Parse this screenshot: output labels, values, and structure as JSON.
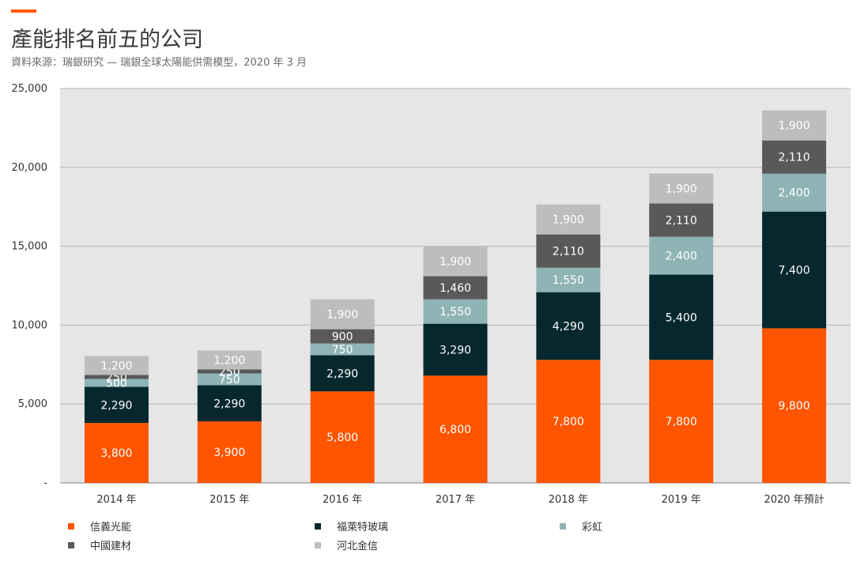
{
  "header": {
    "title": "產能排名前五的公司",
    "subtitle": "資料來源：瑞銀研究 — 瑞銀全球太陽能供需模型，2020 年 3 月",
    "accent_color": "#ff5a00"
  },
  "chart_data": {
    "type": "bar",
    "stacked": true,
    "categories": [
      "2014 年",
      "2015 年",
      "2016 年",
      "2017 年",
      "2018 年",
      "2019 年",
      "2020 年預計"
    ],
    "series": [
      {
        "name": "信義光能",
        "color": "#ff5500",
        "label_color": "#ffffff",
        "values": [
          3800,
          3900,
          5800,
          6800,
          7800,
          7800,
          9800
        ]
      },
      {
        "name": "福萊特玻璃",
        "color": "#06272e",
        "label_color": "#ffffff",
        "values": [
          2290,
          2290,
          2290,
          3290,
          4290,
          5400,
          7400
        ]
      },
      {
        "name": "彩虹",
        "color": "#8fb4b6",
        "label_color": "#ffffff",
        "values": [
          500,
          750,
          750,
          1550,
          1550,
          2400,
          2400
        ]
      },
      {
        "name": "中國建材",
        "color": "#595959",
        "label_color": "#ffffff",
        "values": [
          250,
          250,
          900,
          1460,
          2110,
          2110,
          2110
        ]
      },
      {
        "name": "河北金信",
        "color": "#bdbdbd",
        "label_color": "#ffffff",
        "values": [
          1200,
          1200,
          1900,
          1900,
          1900,
          1900,
          1900
        ]
      }
    ],
    "ylim": [
      0,
      25000
    ],
    "yticks": [
      {
        "value": 0,
        "label": "-"
      },
      {
        "value": 5000,
        "label": "5,000"
      },
      {
        "value": 10000,
        "label": "10,000"
      },
      {
        "value": 15000,
        "label": "15,000"
      },
      {
        "value": 20000,
        "label": "20,000"
      },
      {
        "value": 25000,
        "label": "25,000"
      }
    ],
    "grid": true,
    "plot_background": "#e6e6e6",
    "legend_position": "bottom"
  }
}
